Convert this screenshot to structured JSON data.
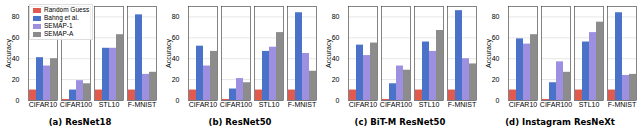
{
  "chart_data": [
    {
      "type": "bar",
      "title": "(a) ResNet18",
      "y_label": "Accuracy",
      "categories": [
        "CIFAR10",
        "CIFAR100",
        "STL10",
        "F-MNIST"
      ],
      "series": [
        {
          "name": "Random Guess",
          "color": "#e05a4f",
          "values": [
            10,
            1,
            10,
            10
          ]
        },
        {
          "name": "Bahng et al.",
          "color": "#4a72c8",
          "values": [
            41,
            10,
            50,
            82
          ]
        },
        {
          "name": "SEMAP-1",
          "color": "#9f8fe0",
          "values": [
            33,
            19,
            50,
            25
          ]
        },
        {
          "name": "SEMAP-A",
          "color": "#8c8c8c",
          "values": [
            40,
            16,
            63,
            27
          ]
        }
      ],
      "ylim": [
        0,
        90
      ],
      "yticks": [
        0,
        20,
        40,
        60,
        80
      ],
      "grid": true,
      "legend": "top-left"
    },
    {
      "type": "bar",
      "title": "(b) ResNet50",
      "y_label": "Accuracy",
      "categories": [
        "CIFAR10",
        "CIFAR100",
        "STL10",
        "F-MNIST"
      ],
      "series": [
        {
          "name": "Random Guess",
          "color": "#e05a4f",
          "values": [
            10,
            1,
            10,
            10
          ]
        },
        {
          "name": "Bahng et al.",
          "color": "#4a72c8",
          "values": [
            52,
            11,
            47,
            84
          ]
        },
        {
          "name": "SEMAP-1",
          "color": "#9f8fe0",
          "values": [
            33,
            21,
            51,
            45
          ]
        },
        {
          "name": "SEMAP-A",
          "color": "#8c8c8c",
          "values": [
            47,
            17,
            65,
            28
          ]
        }
      ],
      "ylim": [
        0,
        90
      ],
      "yticks": [
        0,
        20,
        40,
        60,
        80
      ],
      "grid": true
    },
    {
      "type": "bar",
      "title": "(c) BiT-M ResNet50",
      "y_label": "Accuracy",
      "categories": [
        "CIFAR10",
        "CIFAR100",
        "STL10",
        "F-MNIST"
      ],
      "series": [
        {
          "name": "Random Guess",
          "color": "#e05a4f",
          "values": [
            10,
            1,
            10,
            10
          ]
        },
        {
          "name": "Bahng et al.",
          "color": "#4a72c8",
          "values": [
            53,
            16,
            56,
            86
          ]
        },
        {
          "name": "SEMAP-1",
          "color": "#9f8fe0",
          "values": [
            43,
            33,
            47,
            40
          ]
        },
        {
          "name": "SEMAP-A",
          "color": "#8c8c8c",
          "values": [
            55,
            29,
            67,
            35
          ]
        }
      ],
      "ylim": [
        0,
        90
      ],
      "yticks": [
        0,
        20,
        40,
        60,
        80
      ],
      "grid": true
    },
    {
      "type": "bar",
      "title": "(d) Instagram ResNeXt",
      "y_label": "Accuracy",
      "categories": [
        "CIFAR10",
        "CIFAR100",
        "STL10",
        "F-MNIST"
      ],
      "series": [
        {
          "name": "Random Guess",
          "color": "#e05a4f",
          "values": [
            10,
            1,
            10,
            10
          ]
        },
        {
          "name": "Bahng et al.",
          "color": "#4a72c8",
          "values": [
            59,
            17,
            56,
            84
          ]
        },
        {
          "name": "SEMAP-1",
          "color": "#9f8fe0",
          "values": [
            54,
            37,
            65,
            24
          ]
        },
        {
          "name": "SEMAP-A",
          "color": "#8c8c8c",
          "values": [
            63,
            27,
            75,
            25
          ]
        }
      ],
      "ylim": [
        0,
        90
      ],
      "yticks": [
        0,
        20,
        40,
        60,
        80
      ],
      "grid": true
    }
  ]
}
